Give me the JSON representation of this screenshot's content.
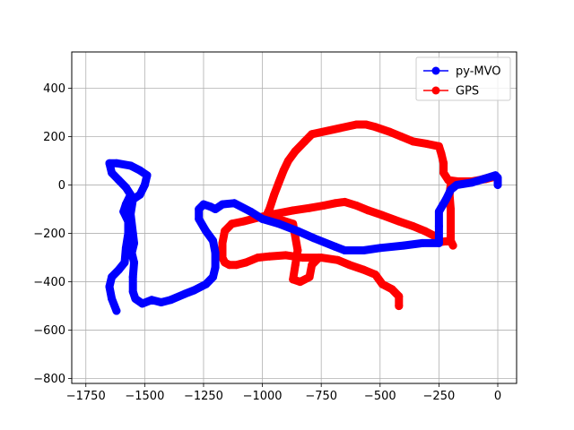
{
  "chart_data": {
    "type": "line",
    "title": "",
    "xlabel": "",
    "ylabel": "",
    "xlim": [
      -1810,
      80
    ],
    "ylim": [
      -820,
      550
    ],
    "grid": true,
    "legend_position": "top-right",
    "x_ticks": [
      -1750,
      -1500,
      -1250,
      -1000,
      -750,
      -500,
      -250,
      0
    ],
    "y_ticks": [
      -800,
      -600,
      -400,
      -200,
      0,
      200,
      400
    ],
    "x_tick_labels": [
      "−1750",
      "−1500",
      "−1250",
      "−1000",
      "−750",
      "−500",
      "−250",
      "0"
    ],
    "y_tick_labels": [
      "−800",
      "−600",
      "−400",
      "−200",
      "0",
      "200",
      "400"
    ],
    "series": [
      {
        "name": "py-MVO",
        "color": "#0000ff",
        "points": [
          [
            0,
            0
          ],
          [
            0,
            30
          ],
          [
            -10,
            40
          ],
          [
            -60,
            25
          ],
          [
            -110,
            10
          ],
          [
            -175,
            0
          ],
          [
            -200,
            -20
          ],
          [
            -220,
            -60
          ],
          [
            -250,
            -110
          ],
          [
            -250,
            -170
          ],
          [
            -250,
            -240
          ],
          [
            -320,
            -240
          ],
          [
            -400,
            -250
          ],
          [
            -500,
            -260
          ],
          [
            -570,
            -270
          ],
          [
            -650,
            -270
          ],
          [
            -690,
            -255
          ],
          [
            -780,
            -220
          ],
          [
            -850,
            -190
          ],
          [
            -930,
            -160
          ],
          [
            -1000,
            -140
          ],
          [
            -1050,
            -110
          ],
          [
            -1120,
            -75
          ],
          [
            -1170,
            -80
          ],
          [
            -1200,
            -100
          ],
          [
            -1220,
            -90
          ],
          [
            -1250,
            -80
          ],
          [
            -1270,
            -100
          ],
          [
            -1270,
            -140
          ],
          [
            -1240,
            -190
          ],
          [
            -1210,
            -230
          ],
          [
            -1200,
            -280
          ],
          [
            -1200,
            -340
          ],
          [
            -1210,
            -380
          ],
          [
            -1240,
            -410
          ],
          [
            -1290,
            -435
          ],
          [
            -1330,
            -450
          ],
          [
            -1390,
            -475
          ],
          [
            -1430,
            -485
          ],
          [
            -1470,
            -475
          ],
          [
            -1510,
            -490
          ],
          [
            -1540,
            -470
          ],
          [
            -1550,
            -440
          ],
          [
            -1550,
            -380
          ],
          [
            -1545,
            -320
          ],
          [
            -1555,
            -280
          ],
          [
            -1545,
            -240
          ],
          [
            -1550,
            -200
          ],
          [
            -1560,
            -120
          ],
          [
            -1550,
            -60
          ],
          [
            -1520,
            -40
          ],
          [
            -1500,
            0
          ],
          [
            -1490,
            40
          ],
          [
            -1520,
            60
          ],
          [
            -1560,
            80
          ],
          [
            -1620,
            90
          ],
          [
            -1650,
            90
          ],
          [
            -1640,
            50
          ],
          [
            -1610,
            20
          ],
          [
            -1580,
            -10
          ],
          [
            -1560,
            -40
          ],
          [
            -1580,
            -80
          ],
          [
            -1590,
            -110
          ],
          [
            -1570,
            -150
          ],
          [
            -1570,
            -200
          ],
          [
            -1580,
            -260
          ],
          [
            -1585,
            -320
          ],
          [
            -1610,
            -350
          ],
          [
            -1640,
            -380
          ],
          [
            -1650,
            -420
          ],
          [
            -1640,
            -470
          ],
          [
            -1620,
            -520
          ]
        ]
      },
      {
        "name": "GPS",
        "color": "#ff0000",
        "points": [
          [
            -420,
            -500
          ],
          [
            -420,
            -460
          ],
          [
            -450,
            -430
          ],
          [
            -490,
            -410
          ],
          [
            -520,
            -370
          ],
          [
            -570,
            -350
          ],
          [
            -630,
            -330
          ],
          [
            -680,
            -310
          ],
          [
            -750,
            -300
          ],
          [
            -830,
            -300
          ],
          [
            -900,
            -290
          ],
          [
            -970,
            -295
          ],
          [
            -1020,
            -300
          ],
          [
            -1070,
            -320
          ],
          [
            -1110,
            -330
          ],
          [
            -1140,
            -330
          ],
          [
            -1160,
            -320
          ],
          [
            -1170,
            -300
          ],
          [
            -1170,
            -240
          ],
          [
            -1160,
            -190
          ],
          [
            -1130,
            -160
          ],
          [
            -1080,
            -150
          ],
          [
            -1020,
            -135
          ],
          [
            -950,
            -120
          ],
          [
            -870,
            -105
          ],
          [
            -800,
            -95
          ],
          [
            -740,
            -85
          ],
          [
            -690,
            -75
          ],
          [
            -650,
            -70
          ],
          [
            -600,
            -85
          ],
          [
            -550,
            -105
          ],
          [
            -490,
            -125
          ],
          [
            -420,
            -150
          ],
          [
            -360,
            -170
          ],
          [
            -310,
            -190
          ],
          [
            -270,
            -210
          ],
          [
            -240,
            -235
          ],
          [
            -200,
            -230
          ],
          [
            -190,
            -250
          ],
          [
            -200,
            -230
          ],
          [
            -200,
            -160
          ],
          [
            -200,
            -100
          ],
          [
            -205,
            -40
          ],
          [
            -200,
            0
          ],
          [
            -180,
            5
          ],
          [
            -140,
            10
          ],
          [
            -80,
            20
          ],
          [
            -40,
            30
          ],
          [
            -10,
            35
          ],
          [
            -50,
            25
          ],
          [
            -110,
            15
          ],
          [
            -170,
            15
          ],
          [
            -210,
            20
          ],
          [
            -230,
            50
          ],
          [
            -230,
            90
          ],
          [
            -240,
            130
          ],
          [
            -250,
            160
          ],
          [
            -300,
            170
          ],
          [
            -360,
            180
          ],
          [
            -410,
            200
          ],
          [
            -460,
            220
          ],
          [
            -520,
            240
          ],
          [
            -560,
            250
          ],
          [
            -600,
            250
          ],
          [
            -790,
            210
          ],
          [
            -820,
            180
          ],
          [
            -860,
            140
          ],
          [
            -890,
            100
          ],
          [
            -910,
            60
          ],
          [
            -930,
            10
          ],
          [
            -950,
            -40
          ],
          [
            -970,
            -100
          ],
          [
            -990,
            -140
          ],
          [
            -950,
            -140
          ],
          [
            -920,
            -145
          ],
          [
            -870,
            -160
          ],
          [
            -850,
            -270
          ],
          [
            -860,
            -330
          ],
          [
            -870,
            -390
          ],
          [
            -840,
            -400
          ],
          [
            -800,
            -380
          ],
          [
            -790,
            -330
          ],
          [
            -760,
            -300
          ]
        ]
      }
    ]
  }
}
